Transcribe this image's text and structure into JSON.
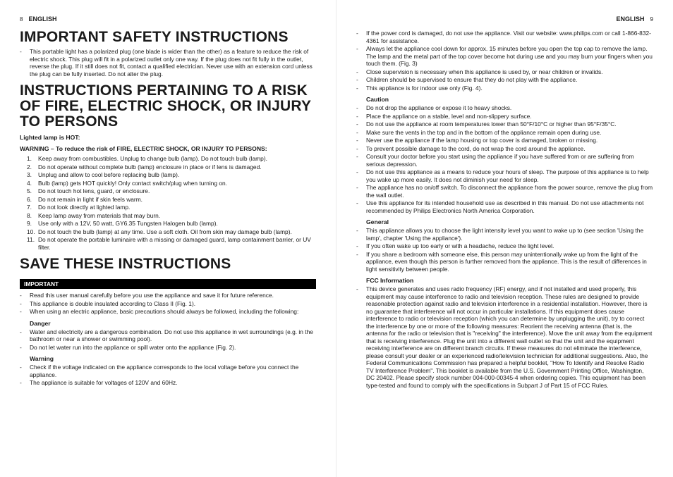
{
  "left": {
    "page_num": "8",
    "lang": "ENGLISH",
    "h1_safety": "IMPORTANT SAFETY INSTRUCTIONS",
    "safety_para": "This portable light has a polarized plug (one blade is wider than the other) as a feature to reduce the risk of electric shock. This plug will fit in a polarized outlet only one way. If the plug does not fit fully in the outlet, reverse the plug. If it still does not fit, contact a qualified electrician. Never use with an extension cord unless the plug can be fully inserted. Do not alter the plug.",
    "h1_risk": "INSTRUCTIONS PERTAINING TO A RISK OF FIRE, ELECTRIC SHOCK, OR INJURY TO PERSONS",
    "hot_label": "Lighted lamp is HOT:",
    "warning_label": "WARNING – To reduce the risk of FIRE, ELECTRIC SHOCK, OR INJURY TO PERSONS:",
    "warnings": [
      "Keep away from combustibles. Unplug to change bulb (lamp). Do not touch bulb (lamp).",
      "Do not operate without complete bulb (lamp) enclosure in place or if lens is damaged.",
      "Unplug and allow to cool before replacing bulb (lamp).",
      "Bulb (lamp) gets HOT quickly! Only contact switch/plug when turning on.",
      "Do not touch hot lens, guard, or enclosure.",
      "Do not remain in light if skin feels warm.",
      "Do not look directly at lighted lamp.",
      "Keep lamp away from materials that may burn.",
      "Use only with a 12V, 50 watt, GY6.35 Tungsten Halogen bulb (lamp).",
      "Do not touch the bulb (lamp) at any time.  Use a soft cloth.  Oil from skin may damage bulb (lamp).",
      "Do not operate the portable luminaire with a missing or damaged guard, lamp containment barrier, or UV filter."
    ],
    "h1_save": "SAVE THESE INSTRUCTIONS",
    "important_label": "IMPORTANT",
    "important_items": [
      "Read this user manual carefully before you use the appliance and save it for future reference.",
      "This appliance is double insulated according to Class II (Fig. 1).",
      "When using an electric appliance, basic precautions should always be followed, including the following:"
    ],
    "danger_label": "Danger",
    "danger_items": [
      "Water and electricity are a dangerous combination. Do not use this appliance in wet surroundings (e.g. in the bathroom or near a shower or swimming pool).",
      "Do not let water run into the appliance or spill water onto the appliance (Fig. 2)."
    ],
    "warning2_label": "Warning",
    "warning2_items": [
      "Check if the voltage indicated on the appliance corresponds to the local voltage before you connect the appliance.",
      "The appliance is suitable for voltages of 120V and 60Hz."
    ]
  },
  "right": {
    "lang": "ENGLISH",
    "page_num": "9",
    "cont_items": [
      "If the power cord is damaged, do not use the appliance. Visit our website: www.philips.com or call 1-866-832-4361 for assistance.",
      "Always let the appliance cool down for approx. 15 minutes before you open the top cap to remove the lamp. The lamp and the metal part of the top cover become hot during use and you may burn your fingers when you touch them.  (Fig. 3)",
      "Close supervision is necessary when this appliance is used by, or near children or invalids.",
      "Children should be supervised to ensure that they do not play with the appliance.",
      "This appliance is for indoor use only (Fig. 4)."
    ],
    "caution_label": "Caution",
    "caution_items": [
      "Do not drop the appliance or expose it to heavy shocks.",
      "Place the appliance on a stable, level and non-slippery surface.",
      "Do not use the appliance at room temperatures lower than 50°F/10°C or higher than 95°F/35°C.",
      "Make sure the vents in the top and in the bottom of the appliance remain open during use.",
      "Never use the appliance if the lamp housing or top cover is damaged, broken or missing.",
      "To prevent possible damage to the cord, do not wrap the cord around the appliance.",
      "Consult your doctor before you start using the appliance if you have suffered from or are suffering from serious depression.",
      "Do not use this appliance as a means to reduce your hours of sleep. The purpose of this appliance is to help you wake up more easily. It does not diminish your need for sleep.",
      "The appliance has no on/off switch. To disconnect the appliance from the power source, remove the plug from the wall outlet.",
      "Use this appliance for its intended household use as described in this manual. Do not use attachments not recommended by Philips Electronics North America Corporation."
    ],
    "general_label": "General",
    "general_items": [
      "This appliance allows you to choose the light intensity level you want to wake up to (see section 'Using the lamp', chapter 'Using the appliance').",
      "If you often wake up too early or with a headache, reduce the light level.",
      "If you share a bedroom with someone else, this person may unintentionally wake up from the light of the appliance, even though this person is further removed from the appliance. This is the result of differences in light sensitivity between people."
    ],
    "fcc_label": "FCC Information",
    "fcc_items": [
      "This device generates and uses radio frequency (RF) energy, and if not installed and used properly, this equipment may cause interference to radio and television reception. These rules are designed to provide reasonable protection against radio and television interference in a residential installation. However, there is no guarantee that interference will not occur in particular installations. If this equipment does cause interference to radio or television reception (which you can determine by unplugging the unit), try to correct the interference by one or more of the following measures: Reorient the receiving antenna (that is, the antenna for the radio or television that is \"receiving\" the interference). Move the unit away from the equipment that is receiving interference. Plug the unit into a different wall outlet so that the unit and the equipment receiving interference are on different branch circuits. If these measures do not eliminate the interference, please consult your dealer or an experienced radio/television technician for additional suggestions. Also, the Federal Communications Commission has prepared a helpful booklet, \"How To Identify and Resolve Radio TV Interference Problem\". This booklet is available from the U.S. Government Printing Office, Washington, DC 20402. Please specify stock number 004-000-00345-4 when ordering copies. This equipment has been type-tested and found to comply with the specifications in Subpart J of Part 15 of FCC Rules."
    ]
  }
}
